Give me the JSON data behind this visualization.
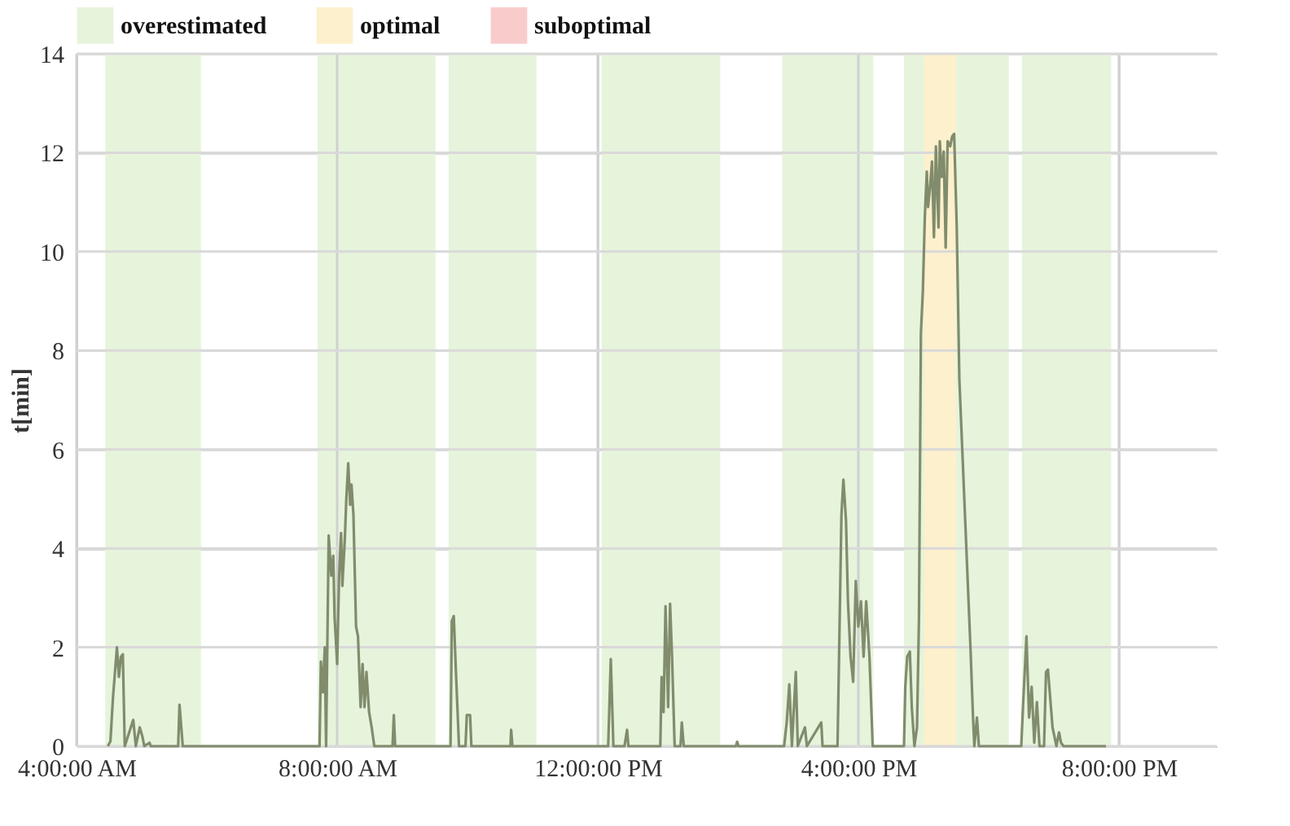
{
  "chart_data": {
    "type": "line",
    "ylabel": "t[min]",
    "xlim": [
      4,
      21.5
    ],
    "ylim": [
      0,
      14
    ],
    "xticks": [
      {
        "value": 4,
        "label": "4:00:00 AM"
      },
      {
        "value": 8,
        "label": "8:00:00 AM"
      },
      {
        "value": 12,
        "label": "12:00:00 PM"
      },
      {
        "value": 16,
        "label": "4:00:00 PM"
      },
      {
        "value": 20,
        "label": "8:00:00 PM"
      }
    ],
    "yticks": [
      0,
      2,
      4,
      6,
      8,
      10,
      12,
      14
    ],
    "grid": true,
    "legend": "top",
    "line_style": "solid",
    "marker": "none",
    "bands": [
      {
        "axis": "x",
        "from": 4.44,
        "to": 5.91,
        "label": "overestimated",
        "color": "#e6f4dc"
      },
      {
        "axis": "x",
        "from": 7.7,
        "to": 9.51,
        "color": "#e6f4dc"
      },
      {
        "axis": "x",
        "from": 9.71,
        "to": 11.06,
        "color": "#e6f4dc"
      },
      {
        "axis": "x",
        "from": 12.06,
        "to": 13.88,
        "color": "#e6f4dc"
      },
      {
        "axis": "x",
        "from": 14.83,
        "to": 16.23,
        "color": "#e6f4dc"
      },
      {
        "axis": "x",
        "from": 16.7,
        "to": 18.31,
        "color": "#e6f4dc"
      },
      {
        "axis": "x",
        "from": 17.01,
        "to": 17.5,
        "label": "optimal",
        "color": "#fdf0cc"
      },
      {
        "axis": "x",
        "from": 18.51,
        "to": 19.88,
        "color": "#e6f4dc"
      }
    ],
    "series": [
      {
        "color": "#808c6c",
        "x": [
          4.48,
          4.52,
          4.56,
          4.62,
          4.65,
          4.68,
          4.71,
          4.74,
          4.87,
          4.91,
          4.97,
          5.01,
          5.04,
          5.12,
          5.14,
          5.56,
          5.58,
          5.63,
          7.73,
          7.75,
          7.78,
          7.81,
          7.83,
          7.87,
          7.91,
          7.94,
          7.96,
          8.0,
          8.03,
          8.06,
          8.08,
          8.12,
          8.14,
          8.17,
          8.2,
          8.22,
          8.25,
          8.29,
          8.32,
          8.36,
          8.39,
          8.42,
          8.45,
          8.49,
          8.53,
          8.57,
          8.85,
          8.87,
          8.89,
          9.74,
          9.76,
          9.79,
          9.82,
          9.87,
          9.97,
          9.99,
          10.04,
          10.06,
          10.66,
          10.67,
          10.69,
          12.16,
          12.2,
          12.24,
          12.41,
          12.45,
          12.47,
          12.96,
          12.98,
          13.01,
          13.04,
          13.08,
          13.11,
          13.14,
          13.18,
          13.27,
          13.29,
          13.32,
          14.12,
          14.14,
          14.16,
          14.86,
          14.9,
          14.94,
          14.98,
          15.04,
          15.07,
          15.18,
          15.21,
          15.43,
          15.45,
          15.68,
          15.7,
          15.74,
          15.77,
          15.81,
          15.84,
          15.88,
          15.92,
          15.96,
          16.0,
          16.04,
          16.08,
          16.12,
          16.17,
          16.22,
          16.7,
          16.72,
          16.75,
          16.79,
          16.82,
          16.86,
          16.9,
          16.93,
          16.96,
          16.99,
          17.02,
          17.05,
          17.07,
          17.1,
          17.13,
          17.16,
          17.19,
          17.23,
          17.25,
          17.28,
          17.31,
          17.34,
          17.37,
          17.41,
          17.44,
          17.47,
          17.51,
          17.55,
          17.72,
          17.76,
          17.78,
          17.82,
          17.85,
          18.5,
          18.53,
          18.58,
          18.62,
          18.66,
          18.7,
          18.74,
          18.78,
          18.85,
          18.88,
          18.91,
          18.98,
          19.04,
          19.08,
          19.11,
          19.15,
          19.8
        ],
        "values": [
          0,
          0.1,
          1.0,
          2.0,
          1.4,
          1.8,
          1.86,
          0,
          0.53,
          0,
          0.38,
          0.2,
          0,
          0.07,
          0,
          0,
          0.84,
          0,
          0,
          1.71,
          1.09,
          2.0,
          0,
          4.26,
          3.45,
          3.85,
          2.63,
          1.66,
          3.45,
          4.31,
          3.24,
          4.26,
          4.98,
          5.72,
          4.88,
          5.29,
          4.67,
          2.42,
          2.22,
          0.79,
          1.66,
          0.79,
          1.5,
          0.69,
          0.38,
          0,
          0,
          0.63,
          0,
          0,
          2.53,
          2.63,
          1.6,
          0,
          0,
          0.63,
          0.63,
          0,
          0,
          0.33,
          0,
          0,
          1.76,
          0,
          0,
          0.33,
          0,
          0,
          1.4,
          0.69,
          2.83,
          0.79,
          2.88,
          1.81,
          0,
          0,
          0.48,
          0,
          0,
          0.09,
          0,
          0,
          0.48,
          1.25,
          0,
          1.5,
          0,
          0.38,
          0,
          0.48,
          0,
          0,
          1.55,
          4.67,
          5.39,
          4.57,
          2.93,
          1.81,
          1.3,
          3.34,
          2.42,
          2.93,
          1.81,
          2.93,
          1.81,
          0,
          0,
          1.2,
          1.81,
          1.91,
          0.79,
          0,
          0.38,
          2.58,
          8.35,
          9.21,
          10.7,
          11.62,
          10.9,
          11.3,
          11.82,
          10.29,
          12.13,
          10.49,
          12.23,
          11.51,
          12.02,
          10.08,
          12.23,
          12.13,
          12.33,
          12.38,
          10.49,
          7.42,
          2.01,
          0.58,
          0,
          0.58,
          0,
          0,
          0.89,
          2.22,
          0.58,
          1.2,
          0.07,
          0.89,
          0,
          0,
          1.5,
          1.55,
          0.38,
          0,
          0.28,
          0.07,
          0,
          0
        ]
      },
      {
        "name": "suboptimal",
        "color": "#f9cccc"
      }
    ]
  }
}
